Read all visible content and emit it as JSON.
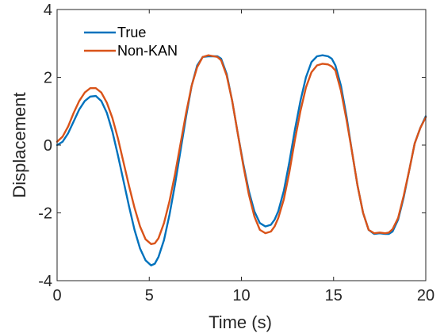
{
  "chart_data": {
    "type": "line",
    "xlabel": "Time (s)",
    "ylabel": "Displacement",
    "xlim": [
      0,
      20
    ],
    "ylim": [
      -4,
      4
    ],
    "xticks": [
      0,
      5,
      10,
      15,
      20
    ],
    "xtick_labels": [
      "0",
      "5",
      "10",
      "15",
      "20"
    ],
    "yticks": [
      -4,
      -2,
      0,
      2,
      4
    ],
    "ytick_labels": [
      "-4",
      "-2",
      "0",
      "2",
      "4"
    ],
    "grid": false,
    "legend_position": "top-left",
    "series": [
      {
        "name": "True",
        "color": "#0072BD",
        "x": [
          0,
          0.3,
          0.6,
          0.9,
          1.2,
          1.5,
          1.8,
          2.1,
          2.4,
          2.7,
          3.0,
          3.3,
          3.6,
          3.9,
          4.2,
          4.5,
          4.8,
          5.1,
          5.3,
          5.5,
          5.8,
          6.1,
          6.4,
          6.7,
          7.0,
          7.3,
          7.6,
          7.9,
          8.2,
          8.5,
          8.7,
          8.9,
          9.2,
          9.5,
          9.8,
          10.1,
          10.4,
          10.7,
          11.0,
          11.3,
          11.6,
          11.8,
          12.0,
          12.3,
          12.6,
          12.9,
          13.2,
          13.5,
          13.8,
          14.1,
          14.4,
          14.7,
          14.9,
          15.1,
          15.4,
          15.7,
          16.0,
          16.3,
          16.6,
          16.9,
          17.2,
          17.5,
          17.8,
          18.0,
          18.2,
          18.5,
          18.8,
          19.1,
          19.4,
          19.7,
          20.0
        ],
        "y": [
          0.0,
          0.1,
          0.35,
          0.7,
          1.05,
          1.3,
          1.43,
          1.45,
          1.3,
          0.95,
          0.4,
          -0.3,
          -1.05,
          -1.8,
          -2.5,
          -3.05,
          -3.4,
          -3.55,
          -3.5,
          -3.3,
          -2.8,
          -2.05,
          -1.15,
          -0.15,
          0.85,
          1.75,
          2.35,
          2.6,
          2.62,
          2.62,
          2.62,
          2.55,
          2.1,
          1.3,
          0.35,
          -0.55,
          -1.35,
          -1.95,
          -2.3,
          -2.4,
          -2.35,
          -2.2,
          -1.95,
          -1.35,
          -0.5,
          0.45,
          1.3,
          2.0,
          2.45,
          2.62,
          2.65,
          2.62,
          2.55,
          2.35,
          1.75,
          0.85,
          -0.2,
          -1.2,
          -2.0,
          -2.5,
          -2.62,
          -2.6,
          -2.62,
          -2.62,
          -2.55,
          -2.2,
          -1.55,
          -0.75,
          0.05,
          0.5,
          0.85
        ]
      },
      {
        "name": "Non-KAN",
        "color": "#D95319",
        "x": [
          0,
          0.3,
          0.6,
          0.9,
          1.2,
          1.5,
          1.8,
          2.1,
          2.4,
          2.7,
          3.0,
          3.3,
          3.6,
          3.9,
          4.2,
          4.5,
          4.8,
          5.1,
          5.3,
          5.5,
          5.8,
          6.1,
          6.4,
          6.7,
          7.0,
          7.3,
          7.6,
          7.9,
          8.2,
          8.5,
          8.7,
          8.9,
          9.2,
          9.5,
          9.8,
          10.1,
          10.4,
          10.7,
          11.0,
          11.3,
          11.6,
          11.8,
          12.0,
          12.3,
          12.6,
          12.9,
          13.2,
          13.5,
          13.8,
          14.1,
          14.4,
          14.7,
          14.9,
          15.1,
          15.4,
          15.7,
          16.0,
          16.3,
          16.6,
          16.9,
          17.2,
          17.5,
          17.8,
          18.0,
          18.2,
          18.5,
          18.8,
          19.1,
          19.4,
          19.7,
          20.0
        ],
        "y": [
          0.1,
          0.25,
          0.55,
          0.95,
          1.3,
          1.55,
          1.68,
          1.68,
          1.55,
          1.25,
          0.8,
          0.2,
          -0.5,
          -1.2,
          -1.85,
          -2.4,
          -2.78,
          -2.92,
          -2.9,
          -2.75,
          -2.3,
          -1.65,
          -0.85,
          0.05,
          0.95,
          1.75,
          2.3,
          2.6,
          2.65,
          2.62,
          2.6,
          2.5,
          2.05,
          1.3,
          0.35,
          -0.6,
          -1.45,
          -2.1,
          -2.5,
          -2.6,
          -2.55,
          -2.4,
          -2.15,
          -1.6,
          -0.8,
          0.15,
          1.0,
          1.7,
          2.15,
          2.35,
          2.4,
          2.38,
          2.32,
          2.2,
          1.6,
          0.75,
          -0.2,
          -1.2,
          -2.0,
          -2.5,
          -2.6,
          -2.58,
          -2.6,
          -2.58,
          -2.48,
          -2.15,
          -1.5,
          -0.75,
          0.05,
          0.5,
          0.82
        ]
      }
    ]
  }
}
